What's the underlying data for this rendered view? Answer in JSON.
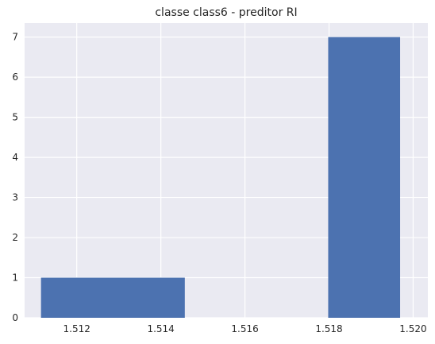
{
  "chart_data": {
    "type": "bar",
    "title": "classe class6 - preditor RI",
    "xlabel": "",
    "ylabel": "",
    "xlim": [
      1.51076,
      1.52035
    ],
    "ylim": [
      0,
      7.35
    ],
    "x_ticks": [
      "1.512",
      "1.514",
      "1.516",
      "1.518",
      "1.520"
    ],
    "x_tick_values": [
      1.512,
      1.514,
      1.516,
      1.518,
      1.52
    ],
    "y_ticks": [
      "0",
      "1",
      "2",
      "3",
      "4",
      "5",
      "6",
      "7"
    ],
    "y_tick_values": [
      0,
      1,
      2,
      3,
      4,
      5,
      6,
      7
    ],
    "bars": [
      {
        "x_start": 1.51115,
        "x_end": 1.51457,
        "value": 1
      },
      {
        "x_start": 1.51798,
        "x_end": 1.51969,
        "value": 7
      }
    ],
    "grid": true,
    "colors": {
      "bar": "#4c72b0",
      "background": "#eaeaf2",
      "grid": "#ffffff"
    }
  }
}
